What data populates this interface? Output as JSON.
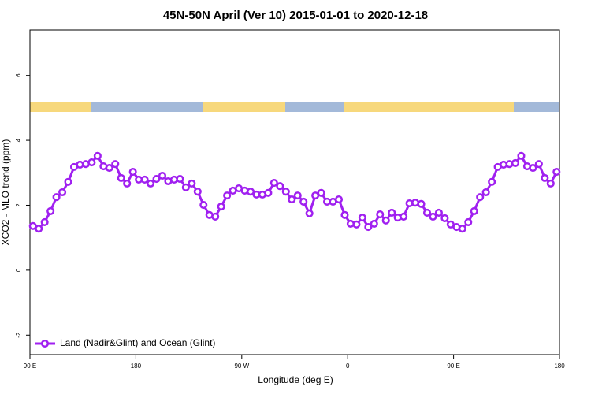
{
  "chart_data": {
    "type": "line",
    "title": "45N-50N April (Ver 10)   2015-01-01 to 2020-12-18",
    "x_label": "Longitude (deg E)",
    "y_label": "XCO2 - MLO trend (ppm)",
    "xlim": [
      90,
      540
    ],
    "xticks": [
      {
        "value": 90,
        "label": "90 E"
      },
      180,
      {
        "value": 270,
        "label": "90 W"
      },
      {
        "value": 360,
        "label": "0"
      },
      {
        "value": 450,
        "label": "90 E"
      },
      {
        "value": 540,
        "label": "180"
      }
    ],
    "ylim": [
      -2.6,
      7.4
    ],
    "yticks": [
      -2,
      0,
      2,
      4,
      6
    ],
    "legend": "bottom-left",
    "x": [
      92.5,
      97.5,
      102.5,
      107.5,
      112.5,
      117.5,
      122.5,
      127.5,
      132.5,
      137.5,
      142.5,
      147.5,
      152.5,
      157.5,
      162.5,
      167.5,
      172.5,
      177.5,
      182.5,
      187.5,
      192.5,
      197.5,
      202.5,
      207.5,
      212.5,
      217.5,
      222.5,
      227.5,
      232.5,
      237.5,
      242.5,
      247.5,
      252.5,
      257.5,
      262.5,
      267.5,
      272.5,
      277.5,
      282.5,
      287.5,
      292.5,
      297.5,
      302.5,
      307.5,
      312.5,
      317.5,
      322.5,
      327.5,
      332.5,
      337.5,
      342.5,
      347.5,
      352.5,
      357.5,
      362.5,
      367.5,
      372.5,
      377.5,
      382.5,
      387.5,
      392.5,
      397.5,
      402.5,
      407.5,
      412.5,
      417.5,
      422.5,
      427.5,
      432.5,
      437.5,
      442.5,
      447.5,
      452.5,
      457.5,
      462.5,
      467.5,
      472.5,
      477.5,
      482.5,
      487.5,
      492.5,
      497.5,
      502.5,
      507.5,
      512.5,
      517.5,
      522.5,
      527.5,
      532.5,
      537.5
    ],
    "series": [
      {
        "name": "Land (Nadir&Glint) and Ocean (Glint)",
        "color": "#a020f0",
        "values": [
          1.36,
          1.28,
          1.48,
          1.82,
          2.25,
          2.4,
          2.72,
          3.18,
          3.25,
          3.27,
          3.32,
          3.52,
          3.2,
          3.15,
          3.27,
          2.84,
          2.67,
          3.03,
          2.79,
          2.79,
          2.67,
          2.81,
          2.91,
          2.74,
          2.79,
          2.81,
          2.55,
          2.67,
          2.42,
          2.01,
          1.7,
          1.65,
          1.96,
          2.3,
          2.45,
          2.52,
          2.45,
          2.42,
          2.33,
          2.33,
          2.38,
          2.69,
          2.59,
          2.42,
          2.18,
          2.3,
          2.11,
          1.75,
          2.3,
          2.38,
          2.11,
          2.11,
          2.18,
          1.7,
          1.43,
          1.41,
          1.62,
          1.33,
          1.43,
          1.72,
          1.53,
          1.77,
          1.62,
          1.65,
          2.06,
          2.08,
          2.04,
          1.77,
          1.65,
          1.77,
          1.6,
          1.41,
          1.33,
          1.28,
          1.48,
          1.82,
          2.25,
          2.4,
          2.72,
          3.18,
          3.25,
          3.27,
          3.3,
          3.52,
          3.2,
          3.15,
          3.27,
          2.84,
          2.67,
          3.03
        ]
      }
    ]
  }
}
